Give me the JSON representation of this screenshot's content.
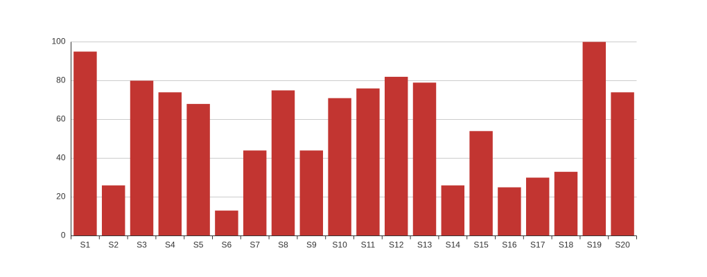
{
  "chart_data": {
    "type": "bar",
    "categories": [
      "S1",
      "S2",
      "S3",
      "S4",
      "S5",
      "S6",
      "S7",
      "S8",
      "S9",
      "S10",
      "S11",
      "S12",
      "S13",
      "S14",
      "S15",
      "S16",
      "S17",
      "S18",
      "S19",
      "S20"
    ],
    "values": [
      95,
      26,
      80,
      74,
      68,
      13,
      44,
      75,
      44,
      71,
      76,
      82,
      79,
      26,
      54,
      25,
      30,
      33,
      100,
      74
    ],
    "color": "#c23531",
    "ylim": [
      0,
      100
    ],
    "yticks": [
      0,
      20,
      40,
      60,
      80,
      100
    ],
    "grid": true
  }
}
